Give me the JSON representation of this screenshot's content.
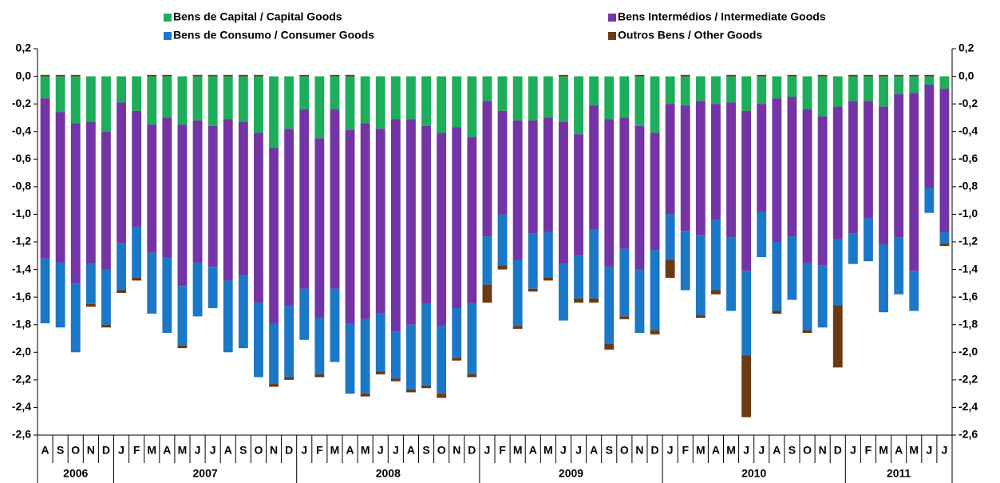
{
  "chart_data": {
    "type": "stacked_bar",
    "category_groups": [
      {
        "label": "2006",
        "categories": [
          "A",
          "S",
          "O",
          "N",
          "D"
        ]
      },
      {
        "label": "2007",
        "categories": [
          "J",
          "F",
          "M",
          "A",
          "M",
          "J",
          "J",
          "A",
          "S",
          "O",
          "N",
          "D"
        ]
      },
      {
        "label": "2008",
        "categories": [
          "J",
          "F",
          "M",
          "A",
          "M",
          "J",
          "J",
          "A",
          "S",
          "O",
          "N",
          "D"
        ]
      },
      {
        "label": "2009",
        "categories": [
          "J",
          "F",
          "M",
          "A",
          "M",
          "J",
          "J",
          "A",
          "S",
          "O",
          "N",
          "D"
        ]
      },
      {
        "label": "2010",
        "categories": [
          "J",
          "F",
          "M",
          "A",
          "M",
          "J",
          "J",
          "A",
          "S",
          "O",
          "N",
          "D"
        ]
      },
      {
        "label": "2011",
        "categories": [
          "J",
          "F",
          "M",
          "A",
          "M",
          "J",
          "J"
        ]
      }
    ],
    "series": [
      {
        "name": "Bens de Capital / Capital Goods",
        "color": "#1eae5b",
        "values": [
          -0.16,
          -0.26,
          -0.34,
          -0.33,
          -0.4,
          -0.19,
          -0.25,
          -0.35,
          -0.3,
          -0.35,
          -0.32,
          -0.36,
          -0.31,
          -0.33,
          -0.41,
          -0.52,
          -0.38,
          -0.24,
          -0.45,
          -0.24,
          -0.39,
          -0.34,
          -0.38,
          -0.31,
          -0.31,
          -0.36,
          -0.41,
          -0.37,
          -0.44,
          -0.18,
          -0.25,
          -0.32,
          -0.32,
          -0.3,
          -0.33,
          -0.42,
          -0.21,
          -0.31,
          -0.3,
          -0.36,
          -0.41,
          -0.2,
          -0.21,
          -0.18,
          -0.2,
          -0.19,
          -0.25,
          -0.2,
          -0.16,
          -0.15,
          -0.24,
          -0.29,
          -0.22,
          -0.18,
          -0.18,
          -0.22,
          -0.13,
          -0.12,
          -0.06,
          -0.09
        ]
      },
      {
        "name": "Bens Intermédios / Intermediate Goods",
        "color": "#7434a6",
        "values": [
          -1.16,
          -1.09,
          -1.16,
          -1.03,
          -1.0,
          -1.02,
          -0.84,
          -0.93,
          -1.01,
          -1.17,
          -1.03,
          -1.02,
          -1.17,
          -1.11,
          -1.23,
          -1.27,
          -1.28,
          -1.3,
          -1.3,
          -1.3,
          -1.4,
          -1.42,
          -1.34,
          -1.54,
          -1.49,
          -1.29,
          -1.4,
          -1.31,
          -1.21,
          -0.98,
          -0.75,
          -1.01,
          -0.82,
          -0.83,
          -1.03,
          -0.88,
          -0.9,
          -1.07,
          -0.95,
          -1.04,
          -0.85,
          -0.8,
          -0.91,
          -0.97,
          -0.84,
          -0.98,
          -1.16,
          -0.78,
          -1.04,
          -1.01,
          -1.12,
          -1.08,
          -0.96,
          -0.96,
          -0.85,
          -1.0,
          -1.04,
          -1.29,
          -0.75,
          -1.04
        ]
      },
      {
        "name": "Bens de Consumo / Consumer Goods",
        "color": "#1b78c8",
        "values": [
          -0.47,
          -0.47,
          -0.5,
          -0.29,
          -0.4,
          -0.34,
          -0.37,
          -0.44,
          -0.55,
          -0.43,
          -0.39,
          -0.3,
          -0.52,
          -0.53,
          -0.54,
          -0.44,
          -0.52,
          -0.37,
          -0.41,
          -0.53,
          -0.51,
          -0.54,
          -0.42,
          -0.34,
          -0.47,
          -0.59,
          -0.49,
          -0.36,
          -0.51,
          -0.35,
          -0.37,
          -0.48,
          -0.4,
          -0.33,
          -0.41,
          -0.31,
          -0.5,
          -0.56,
          -0.49,
          -0.46,
          -0.58,
          -0.33,
          -0.43,
          -0.58,
          -0.51,
          -0.53,
          -0.61,
          -0.33,
          -0.5,
          -0.46,
          -0.48,
          -0.45,
          -0.48,
          -0.22,
          -0.31,
          -0.49,
          -0.41,
          -0.29,
          -0.18,
          -0.08
        ]
      },
      {
        "name": "Outros Bens / Other Goods",
        "color": "#6b3a10",
        "values": [
          0.01,
          0.01,
          0.01,
          -0.02,
          -0.02,
          -0.02,
          -0.02,
          0.01,
          0.01,
          -0.02,
          0.01,
          0.01,
          0.01,
          0.01,
          0.01,
          -0.02,
          -0.02,
          0.01,
          -0.02,
          0.01,
          0.01,
          -0.02,
          -0.02,
          -0.02,
          -0.02,
          -0.02,
          -0.03,
          -0.02,
          -0.02,
          -0.13,
          -0.03,
          -0.02,
          -0.02,
          -0.02,
          0.01,
          -0.03,
          -0.03,
          -0.04,
          -0.02,
          0.01,
          -0.03,
          -0.13,
          0.01,
          -0.02,
          -0.03,
          0.01,
          -0.45,
          0.01,
          -0.02,
          0.01,
          -0.02,
          0.01,
          -0.45,
          0.01,
          0.01,
          0.01,
          0.01,
          0.01,
          0.01,
          -0.02
        ]
      }
    ],
    "ylim": [
      -2.6,
      0.2
    ],
    "yticks": [
      {
        "value": 0.2,
        "label": "0,2"
      },
      {
        "value": 0,
        "label": "0,0"
      },
      {
        "value": -0.2,
        "label": "-0,2"
      },
      {
        "value": -0.4,
        "label": "-0,4"
      },
      {
        "value": -0.6,
        "label": "-0,6"
      },
      {
        "value": -0.8,
        "label": "-0,8"
      },
      {
        "value": -1.0,
        "label": "-1,0"
      },
      {
        "value": -1.2,
        "label": "-1,2"
      },
      {
        "value": -1.4,
        "label": "-1,4"
      },
      {
        "value": -1.6,
        "label": "-1,6"
      },
      {
        "value": -1.8,
        "label": "-1,8"
      },
      {
        "value": -2.0,
        "label": "-2,0"
      },
      {
        "value": -2.2,
        "label": "-2,2"
      },
      {
        "value": -2.4,
        "label": "-2,4"
      },
      {
        "value": -2.6,
        "label": "-2,6"
      }
    ],
    "grid": false
  }
}
